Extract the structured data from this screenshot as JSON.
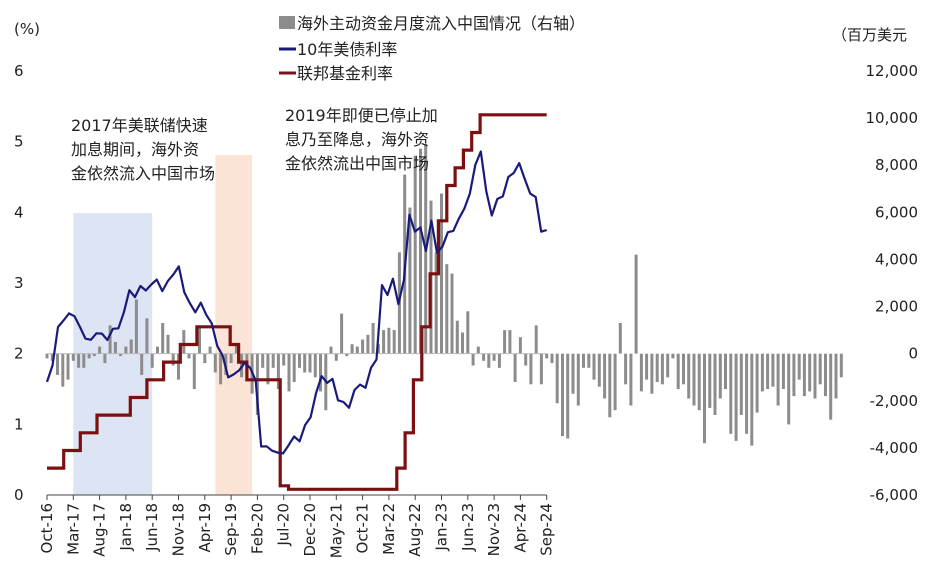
{
  "chart_data": {
    "type": "line",
    "title": "",
    "left_axis": {
      "unit_label": "(%)",
      "ylim": [
        0,
        6
      ],
      "ticks": [
        "0",
        "1",
        "2",
        "3",
        "4",
        "5",
        "6"
      ]
    },
    "right_axis": {
      "unit_label": "（百万美元",
      "ylim": [
        -6000,
        12000
      ],
      "ticks": [
        "-6,000",
        "-4,000",
        "-2,000",
        "0",
        "2,000",
        "4,000",
        "6,000",
        "8,000",
        "10,000",
        "12,000"
      ],
      "negative_color": "#cc0000"
    },
    "x_ticks": [
      "Oct-16",
      "Mar-17",
      "Aug-17",
      "Jan-18",
      "Jun-18",
      "Nov-18",
      "Apr-19",
      "Sep-19",
      "Feb-20",
      "Jul-20",
      "Dec-20",
      "May-21",
      "Oct-21",
      "Mar-22",
      "Aug-22",
      "Jan-23",
      "Jun-23",
      "Nov-23",
      "Apr-24",
      "Sep-24"
    ],
    "legend": [
      {
        "label": "海外主动资金月度流入中国情况（右轴）",
        "color": "#8c8c8c",
        "kind": "bar"
      },
      {
        "label": "10年美债利率",
        "color": "#1a1a7a",
        "kind": "line"
      },
      {
        "label": "联邦基金利率",
        "color": "#7a1010",
        "kind": "line"
      }
    ],
    "annotations": [
      {
        "lines": [
          "2017年美联储快速",
          "加息期间，海外资",
          "金依然流入中国市场"
        ]
      },
      {
        "lines": [
          "2019年即便已停止加",
          "息乃至降息，海外资",
          "金依然流出中国市场"
        ]
      }
    ],
    "shaded_periods": [
      {
        "from": "Mar-17",
        "to": "Jun-18",
        "color": "#dde4f3"
      },
      {
        "from": "Jun-19",
        "to": "Jan-20",
        "color": "#fbe3d6"
      }
    ],
    "months_from": "Oct-16",
    "flows": [
      -200,
      -300,
      -900,
      -1400,
      -1100,
      -300,
      -600,
      -600,
      -200,
      -100,
      300,
      -400,
      1200,
      500,
      -100,
      300,
      600,
      2300,
      -900,
      1500,
      -600,
      300,
      1300,
      800,
      -500,
      -1100,
      1000,
      -200,
      -1500,
      1100,
      -400,
      300,
      -800,
      -1300,
      -900,
      -400,
      400,
      -1000,
      -800,
      -1700,
      -2600,
      -600,
      -1300,
      -600,
      -1500,
      -500,
      -1600,
      -1200,
      -600,
      -800,
      -800,
      -1000,
      -1600,
      -2400,
      300,
      -300,
      1700,
      -100,
      400,
      300,
      600,
      800,
      1300,
      400,
      1000,
      1100,
      1000,
      4300,
      7600,
      6200,
      8400,
      8700,
      8900,
      6500,
      4300,
      6800,
      3800,
      3400,
      1400,
      900,
      1800,
      -500,
      300,
      -300,
      -600,
      -300,
      -600,
      1000,
      1000,
      -1200,
      700,
      -500,
      -1300,
      1200,
      -1300,
      -200,
      -400,
      -2100,
      -3500,
      -3600,
      -1700,
      -2200,
      -600,
      -600,
      -1100,
      -1400,
      -1900,
      -2700,
      -2400,
      1300,
      -1300,
      -2200,
      4200,
      -1600,
      -1100,
      -1700,
      -1200,
      -1300,
      -1000,
      -200,
      -1500,
      -1300,
      -1900,
      -2200,
      -2400,
      -3800,
      -2300,
      -2600,
      -1900,
      -1500,
      -3400,
      -3700,
      -2600,
      -3400,
      -3900,
      -2500,
      -1600,
      -1500,
      -1400,
      -2200,
      -1500,
      -3000,
      -1800,
      -1100,
      -1800,
      -1600,
      -1900,
      -1300,
      -1800,
      -2800,
      -1900,
      -1000
    ],
    "ust10y": [
      1.6,
      1.8,
      2.45,
      2.45,
      2.6,
      2.45,
      2.4,
      2.25,
      2.2,
      2.3,
      2.2,
      2.25,
      2.35,
      2.4,
      2.55,
      2.85,
      2.85,
      2.95,
      2.95,
      2.9,
      3.05,
      2.9,
      3.05,
      3.15,
      3.15,
      2.9,
      2.7,
      2.65,
      2.7,
      2.5,
      2.45,
      2.1,
      2.05,
      1.6,
      1.7,
      1.75,
      1.9,
      1.85,
      1.55,
      0.7,
      0.65,
      0.7,
      0.6,
      0.55,
      0.7,
      0.8,
      0.85,
      0.95,
      1.1,
      1.4,
      1.7,
      1.65,
      1.6,
      1.35,
      1.25,
      1.3,
      1.5,
      1.55,
      1.5,
      1.75,
      2.0,
      2.95,
      2.85,
      3.0,
      2.7,
      3.1,
      3.95,
      3.75,
      3.7,
      3.5,
      3.9,
      3.45,
      3.5,
      3.65,
      3.8,
      3.9,
      4.1,
      4.2,
      4.65,
      4.9,
      4.3,
      4.0,
      4.1,
      4.25,
      4.5,
      4.6,
      4.7,
      4.4,
      4.3,
      4.2,
      3.8,
      3.75
    ],
    "fed_funds": [
      0.38,
      0.38,
      0.63,
      0.63,
      0.88,
      0.88,
      1.13,
      1.13,
      1.13,
      1.13,
      1.38,
      1.38,
      1.63,
      1.63,
      1.88,
      1.88,
      2.13,
      2.13,
      2.38,
      2.38,
      2.38,
      2.38,
      2.13,
      1.88,
      1.63,
      1.63,
      1.63,
      1.63,
      0.13,
      0.08,
      0.08,
      0.08,
      0.08,
      0.08,
      0.08,
      0.08,
      0.08,
      0.08,
      0.08,
      0.08,
      0.08,
      0.08,
      0.38,
      0.88,
      1.63,
      2.38,
      3.13,
      3.88,
      4.38,
      4.63,
      4.88,
      5.13,
      5.38,
      5.38,
      5.38,
      5.38,
      5.38,
      5.38,
      5.38,
      5.38
    ]
  }
}
